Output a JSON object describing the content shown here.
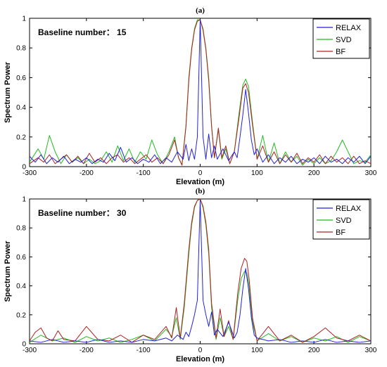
{
  "chart_data": [
    {
      "type": "line",
      "panel_label": "(a)",
      "annotation": "Baseline number：  15",
      "xlabel": "Elevation (m)",
      "ylabel": "Spectrum Power",
      "xlim": [
        -300,
        300
      ],
      "ylim": [
        0,
        1
      ],
      "xticks": [
        -300,
        -200,
        -100,
        0,
        100,
        200,
        300
      ],
      "yticks": [
        0,
        0.2,
        0.4,
        0.6,
        0.8,
        1
      ],
      "ytick_labels": [
        "0",
        "0.2",
        "0.4",
        "0.6",
        "0.8",
        "1"
      ],
      "grid": false,
      "legend_position": "top-right",
      "series": [
        {
          "name": "RELAX",
          "color": "#2222dd",
          "x": [
            -300,
            -290,
            -280,
            -270,
            -260,
            -250,
            -240,
            -230,
            -220,
            -210,
            -200,
            -190,
            -180,
            -170,
            -160,
            -150,
            -140,
            -130,
            -120,
            -110,
            -100,
            -90,
            -80,
            -70,
            -60,
            -50,
            -40,
            -30,
            -25,
            -20,
            -15,
            -10,
            -5,
            0,
            5,
            10,
            15,
            20,
            25,
            30,
            40,
            50,
            60,
            65,
            70,
            75,
            80,
            85,
            90,
            95,
            100,
            110,
            120,
            130,
            140,
            150,
            160,
            170,
            180,
            190,
            200,
            210,
            220,
            230,
            240,
            250,
            260,
            270,
            280,
            290,
            300
          ],
          "y": [
            0.07,
            0.03,
            0.08,
            0.02,
            0.06,
            0.03,
            0.07,
            0.02,
            0.05,
            0.03,
            0.06,
            0.02,
            0.05,
            0.03,
            0.09,
            0.04,
            0.13,
            0.03,
            0.06,
            0.02,
            0.05,
            0.03,
            0.08,
            0.02,
            0.06,
            0.03,
            0.1,
            0.05,
            0.15,
            0.04,
            0.12,
            0.05,
            0.2,
            0.99,
            0.2,
            0.05,
            0.22,
            0.06,
            0.14,
            0.05,
            0.12,
            0.04,
            0.1,
            0.06,
            0.2,
            0.35,
            0.52,
            0.36,
            0.18,
            0.08,
            0.12,
            0.03,
            0.08,
            0.02,
            0.06,
            0.03,
            0.07,
            0.02,
            0.05,
            0.03,
            0.06,
            0.02,
            0.07,
            0.03,
            0.05,
            0.02,
            0.06,
            0.03,
            0.07,
            0.02,
            0.07
          ]
        },
        {
          "name": "SVD",
          "color": "#22bb22",
          "x": [
            -300,
            -285,
            -275,
            -265,
            -255,
            -245,
            -235,
            -225,
            -215,
            -205,
            -195,
            -185,
            -175,
            -165,
            -155,
            -145,
            -135,
            -125,
            -115,
            -105,
            -95,
            -85,
            -75,
            -65,
            -55,
            -45,
            -38,
            -32,
            -25,
            -20,
            -15,
            -10,
            -5,
            0,
            5,
            10,
            15,
            20,
            25,
            32,
            38,
            45,
            52,
            60,
            68,
            75,
            80,
            85,
            92,
            100,
            110,
            120,
            130,
            140,
            150,
            160,
            170,
            180,
            190,
            200,
            210,
            220,
            230,
            240,
            250,
            260,
            270,
            280,
            290,
            300
          ],
          "y": [
            0.03,
            0.12,
            0.05,
            0.21,
            0.1,
            0.02,
            0.08,
            0.03,
            0.06,
            0.02,
            0.05,
            0.02,
            0.04,
            0.1,
            0.03,
            0.14,
            0.04,
            0.12,
            0.03,
            0.1,
            0.05,
            0.18,
            0.08,
            0.02,
            0.1,
            0.2,
            0.06,
            0.01,
            0.28,
            0.6,
            0.8,
            0.93,
            0.99,
            0.99,
            0.93,
            0.8,
            0.6,
            0.28,
            0.06,
            0.25,
            0.05,
            0.12,
            0.02,
            0.1,
            0.35,
            0.55,
            0.59,
            0.54,
            0.3,
            0.05,
            0.21,
            0.03,
            0.16,
            0.02,
            0.1,
            0.03,
            0.07,
            0.01,
            0.05,
            0.02,
            0.06,
            0.02,
            0.04,
            0.1,
            0.18,
            0.1,
            0.02,
            0.04,
            0.03,
            0.08
          ]
        },
        {
          "name": "BF",
          "color": "#b02020",
          "x": [
            -300,
            -285,
            -275,
            -265,
            -255,
            -245,
            -235,
            -225,
            -215,
            -205,
            -195,
            -185,
            -175,
            -165,
            -155,
            -145,
            -135,
            -125,
            -115,
            -105,
            -95,
            -85,
            -75,
            -65,
            -55,
            -45,
            -38,
            -32,
            -25,
            -20,
            -15,
            -10,
            -5,
            0,
            5,
            10,
            15,
            20,
            25,
            32,
            38,
            45,
            52,
            60,
            68,
            75,
            80,
            85,
            92,
            100,
            110,
            120,
            130,
            140,
            150,
            160,
            170,
            180,
            190,
            200,
            210,
            220,
            230,
            240,
            250,
            260,
            270,
            280,
            290,
            300
          ],
          "y": [
            0.02,
            0.06,
            0.03,
            0.08,
            0.02,
            0.05,
            0.08,
            0.03,
            0.07,
            0.02,
            0.09,
            0.03,
            0.06,
            0.02,
            0.06,
            0.08,
            0.03,
            0.06,
            0.02,
            0.05,
            0.08,
            0.03,
            0.06,
            0.02,
            0.08,
            0.18,
            0.06,
            0.01,
            0.27,
            0.58,
            0.79,
            0.92,
            0.98,
            0.99,
            0.92,
            0.79,
            0.58,
            0.27,
            0.06,
            0.26,
            0.06,
            0.14,
            0.02,
            0.1,
            0.32,
            0.53,
            0.56,
            0.5,
            0.28,
            0.05,
            0.14,
            0.03,
            0.1,
            0.02,
            0.08,
            0.03,
            0.09,
            0.02,
            0.06,
            0.03,
            0.08,
            0.02,
            0.07,
            0.03,
            0.06,
            0.02,
            0.07,
            0.02,
            0.04,
            0.02
          ]
        }
      ]
    },
    {
      "type": "line",
      "panel_label": "(b)",
      "annotation": "Baseline number：  30",
      "xlabel": "Elevation (m)",
      "ylabel": "Spectrum Power",
      "xlim": [
        -300,
        300
      ],
      "ylim": [
        0,
        1
      ],
      "xticks": [
        -300,
        -200,
        -100,
        0,
        100,
        200,
        300
      ],
      "yticks": [
        0,
        0.2,
        0.4,
        0.6,
        0.8,
        1
      ],
      "ytick_labels": [
        "0",
        "0.2",
        "0.4",
        "0.6",
        "0.8",
        "1"
      ],
      "grid": false,
      "legend_position": "top-right",
      "series": [
        {
          "name": "RELAX",
          "color": "#2222dd",
          "x": [
            -300,
            -280,
            -260,
            -240,
            -220,
            -200,
            -180,
            -160,
            -140,
            -120,
            -100,
            -80,
            -60,
            -50,
            -40,
            -30,
            -25,
            -20,
            -15,
            -10,
            -5,
            0,
            5,
            10,
            15,
            20,
            25,
            30,
            40,
            50,
            60,
            65,
            70,
            75,
            80,
            85,
            90,
            95,
            100,
            120,
            140,
            160,
            180,
            200,
            220,
            240,
            260,
            280,
            300
          ],
          "y": [
            0.02,
            0.01,
            0.03,
            0.01,
            0.02,
            0.01,
            0.03,
            0.01,
            0.02,
            0.01,
            0.03,
            0.02,
            0.04,
            0.02,
            0.06,
            0.03,
            0.08,
            0.05,
            0.12,
            0.2,
            0.3,
            0.99,
            0.3,
            0.2,
            0.12,
            0.22,
            0.06,
            0.1,
            0.05,
            0.15,
            0.04,
            0.08,
            0.2,
            0.38,
            0.52,
            0.38,
            0.18,
            0.06,
            0.04,
            0.02,
            0.03,
            0.01,
            0.02,
            0.01,
            0.03,
            0.01,
            0.02,
            0.01,
            0.02
          ]
        },
        {
          "name": "SVD",
          "color": "#22bb22",
          "x": [
            -300,
            -280,
            -260,
            -240,
            -220,
            -200,
            -180,
            -160,
            -140,
            -120,
            -100,
            -80,
            -60,
            -50,
            -42,
            -35,
            -28,
            -20,
            -15,
            -10,
            -5,
            0,
            5,
            10,
            15,
            20,
            28,
            35,
            42,
            50,
            58,
            66,
            72,
            78,
            82,
            86,
            92,
            100,
            120,
            140,
            160,
            180,
            200,
            220,
            240,
            260,
            280,
            300
          ],
          "y": [
            0.01,
            0.06,
            0.02,
            0.04,
            0.01,
            0.05,
            0.02,
            0.04,
            0.01,
            0.03,
            0.06,
            0.02,
            0.1,
            0.05,
            0.18,
            0.03,
            0.25,
            0.62,
            0.82,
            0.94,
            0.99,
            1.0,
            0.94,
            0.82,
            0.62,
            0.25,
            0.03,
            0.18,
            0.05,
            0.12,
            0.03,
            0.3,
            0.45,
            0.5,
            0.49,
            0.4,
            0.15,
            0.02,
            0.07,
            0.02,
            0.05,
            0.01,
            0.04,
            0.02,
            0.05,
            0.01,
            0.05,
            0.02
          ]
        },
        {
          "name": "BF",
          "color": "#b02020",
          "x": [
            -300,
            -290,
            -280,
            -270,
            -260,
            -250,
            -240,
            -220,
            -200,
            -180,
            -160,
            -140,
            -120,
            -100,
            -80,
            -60,
            -50,
            -42,
            -35,
            -28,
            -20,
            -15,
            -10,
            -5,
            0,
            5,
            10,
            15,
            20,
            28,
            35,
            42,
            50,
            58,
            66,
            72,
            78,
            82,
            86,
            92,
            100,
            120,
            140,
            160,
            180,
            200,
            220,
            240,
            260,
            280,
            300
          ],
          "y": [
            0.02,
            0.08,
            0.11,
            0.04,
            0.02,
            0.09,
            0.03,
            0.02,
            0.12,
            0.03,
            0.02,
            0.06,
            0.01,
            0.06,
            0.03,
            0.12,
            0.04,
            0.25,
            0.04,
            0.28,
            0.65,
            0.84,
            0.95,
            0.99,
            1.0,
            0.95,
            0.84,
            0.65,
            0.28,
            0.04,
            0.24,
            0.05,
            0.16,
            0.03,
            0.35,
            0.52,
            0.59,
            0.57,
            0.45,
            0.18,
            0.02,
            0.12,
            0.02,
            0.06,
            0.01,
            0.05,
            0.11,
            0.04,
            0.02,
            0.06,
            0.02
          ]
        }
      ]
    }
  ]
}
